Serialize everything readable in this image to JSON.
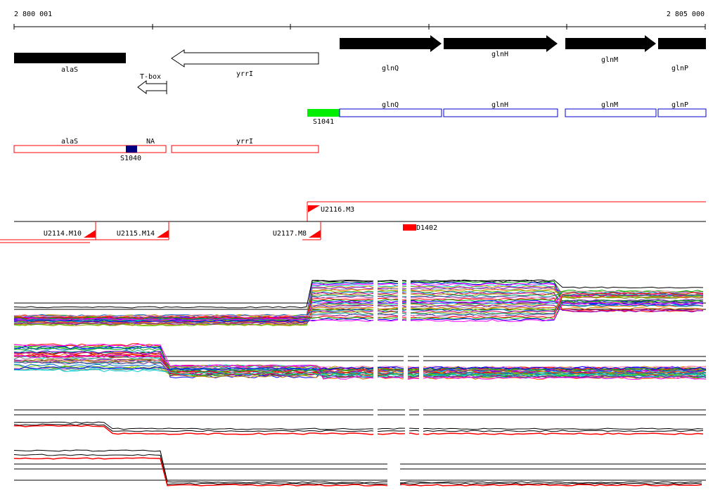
{
  "ruler": {
    "start_label": "2 800 001",
    "end_label": "2 805 000"
  },
  "genes": [
    {
      "name": "alaS",
      "strand": "none",
      "color": "#000000"
    },
    {
      "name": "yrrI",
      "strand": "reverse",
      "color": "#ffffff"
    },
    {
      "name": "glnQ",
      "strand": "forward",
      "color": "#000000"
    },
    {
      "name": "glnH",
      "strand": "forward",
      "color": "#000000"
    },
    {
      "name": "glnM",
      "strand": "forward",
      "color": "#000000"
    },
    {
      "name": "glnP",
      "strand": "forward",
      "color": "#000000"
    }
  ],
  "tbox": {
    "name": "T-box"
  },
  "transcripts_blue": [
    {
      "name": "glnQ"
    },
    {
      "name": "glnH"
    },
    {
      "name": "glnM"
    },
    {
      "name": "glnP"
    }
  ],
  "transcripts_red": [
    {
      "name": "alaS"
    },
    {
      "name": "NA"
    },
    {
      "name": "yrrI"
    }
  ],
  "segments": [
    {
      "name": "S1041",
      "color": "#00ee00"
    },
    {
      "name": "S1040",
      "color": "#000080"
    }
  ],
  "upshifts": [
    {
      "name": "U2116.M3"
    },
    {
      "name": "U2114.M10"
    },
    {
      "name": "U2115.M14"
    },
    {
      "name": "U2117.M8"
    }
  ],
  "downshift": {
    "name": "D1402",
    "color": "#ff0000"
  },
  "colors": {
    "feature_border_red": "#ff0000",
    "feature_border_blue": "#0000cc",
    "black": "#000000"
  }
}
